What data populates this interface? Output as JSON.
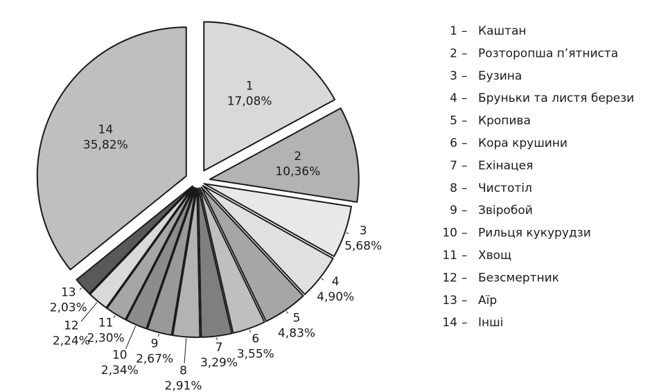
{
  "chart_data": {
    "type": "pie",
    "categories": [
      "1",
      "2",
      "3",
      "4",
      "5",
      "6",
      "7",
      "8",
      "9",
      "10",
      "11",
      "12",
      "13",
      "14"
    ],
    "values": [
      17.08,
      10.36,
      5.68,
      4.9,
      4.83,
      3.55,
      3.29,
      2.91,
      2.67,
      2.34,
      2.3,
      2.24,
      2.03,
      35.82
    ],
    "value_labels": [
      "17,08%",
      "10,36%",
      "5,68%",
      "4,90%",
      "4,83%",
      "3,55%",
      "3,29%",
      "2,91%",
      "2,67%",
      "2,34%",
      "2,30%",
      "2,24%",
      "2,03%",
      "35,82%"
    ],
    "colors": [
      "#d9d9d9",
      "#b3b3b3",
      "#e8e8e8",
      "#e0e0e0",
      "#a6a6a6",
      "#bfbfbf",
      "#7f7f7f",
      "#b3b3b3",
      "#999999",
      "#8c8c8c",
      "#a6a6a6",
      "#d9d9d9",
      "#595959",
      "#bfbfbf"
    ],
    "legend": {
      "separator": "–",
      "names": [
        "Каштан",
        "Розторопша п’ятниста",
        "Бузина",
        "Бруньки та листя берези",
        "Кропива",
        "Кора крушини",
        "Ехінацея",
        "Чистотіл",
        "Звіробой",
        "Рильця кукурудзи",
        "Хвощ",
        "Безсмертник",
        "Аїр",
        "Інші"
      ]
    }
  }
}
